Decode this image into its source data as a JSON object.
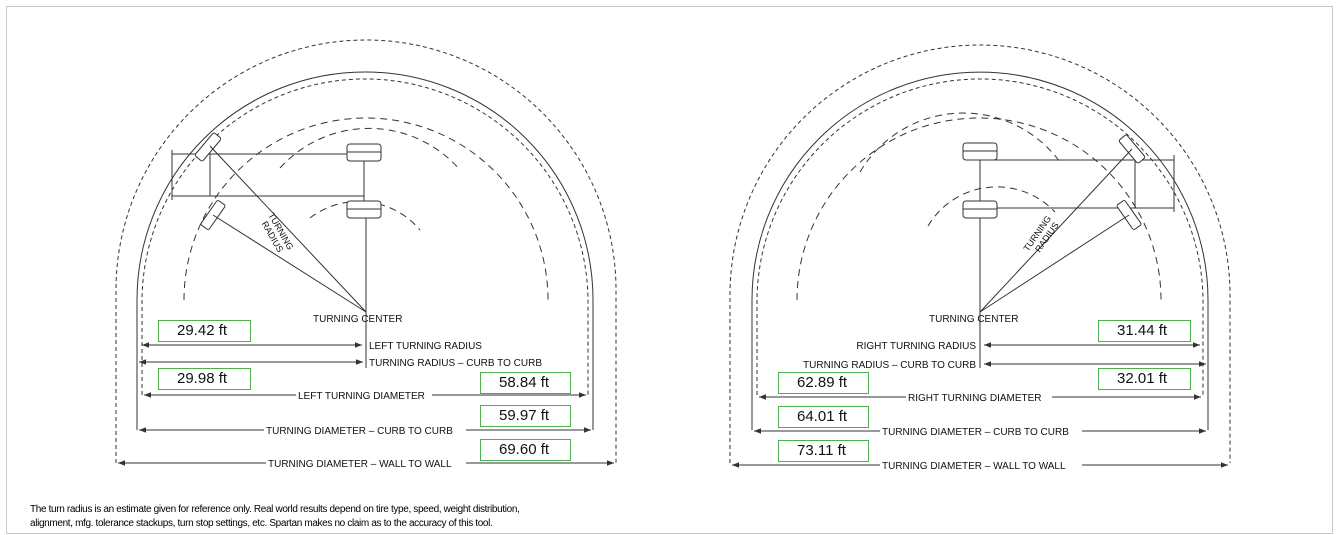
{
  "left": {
    "turning_center": "TURNING CENTER",
    "turning_radius_mark": [
      "TURNING",
      "RADIUS"
    ],
    "labels": {
      "turning_radius": "LEFT TURNING RADIUS",
      "radius_curb": "TURNING RADIUS – CURB TO CURB",
      "turning_diameter": "LEFT TURNING DIAMETER",
      "diameter_curb": "TURNING DIAMETER – CURB TO CURB",
      "diameter_wall": "TURNING DIAMETER – WALL TO WALL"
    },
    "values": {
      "turning_radius": "29.42 ft",
      "radius_curb": "29.98 ft",
      "turning_diameter": "58.84 ft",
      "diameter_curb": "59.97 ft",
      "diameter_wall": "69.60 ft"
    }
  },
  "right": {
    "turning_center": "TURNING CENTER",
    "turning_radius_mark": [
      "TURNING",
      "RADIUS"
    ],
    "labels": {
      "turning_radius": "RIGHT TURNING RADIUS",
      "radius_curb": "TURNING RADIUS – CURB TO CURB",
      "turning_diameter": "RIGHT TURNING DIAMETER",
      "diameter_curb": "TURNING DIAMETER – CURB TO CURB",
      "diameter_wall": "TURNING DIAMETER – WALL TO WALL"
    },
    "values": {
      "turning_radius": "31.44 ft",
      "radius_curb": "32.01 ft",
      "turning_diameter": "62.89 ft",
      "diameter_curb": "64.01 ft",
      "diameter_wall": "73.11 ft"
    }
  },
  "disclaimer": [
    "The turn radius is an estimate given for reference only.  Real world results depend on tire type, speed, weight distribution,",
    "alignment, mfg. tolerance stackups, turn stop settings, etc.  Spartan makes no claim as to the accuracy of this tool."
  ],
  "colors": {
    "value_border": "#4caf50",
    "line": "#333333",
    "frame": "#c8c8c8"
  }
}
